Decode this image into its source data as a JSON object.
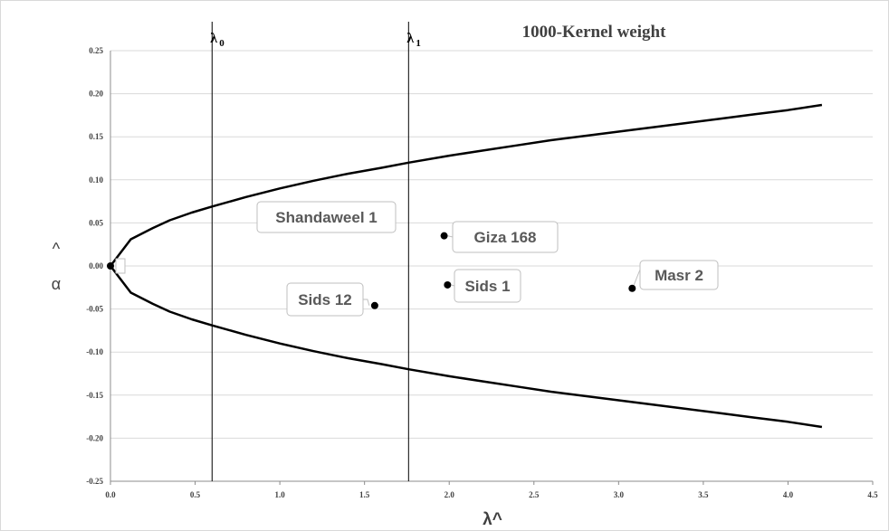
{
  "chart_data": {
    "type": "line",
    "title": "1000-Kernel weight",
    "xlabel": "λ^",
    "ylabel_hat": "^",
    "ylabel": "α",
    "xlim": [
      0.0,
      4.5
    ],
    "ylim": [
      -0.25,
      0.25
    ],
    "x_ticks": [
      "0.0",
      "0.5",
      "1.0",
      "1.5",
      "2.0",
      "2.5",
      "3.0",
      "3.5",
      "4.0",
      "4.5"
    ],
    "y_ticks": [
      "0.25",
      "0.20",
      "0.15",
      "0.10",
      "0.05",
      "0.00",
      "-0.05",
      "-0.10",
      "-0.15",
      "-0.20",
      "-0.25"
    ],
    "grid": "horizontal",
    "series": [
      {
        "x": [
          0.0,
          0.12,
          0.25,
          0.35,
          0.48,
          0.6,
          0.8,
          1.0,
          1.2,
          1.4,
          1.6,
          1.76,
          2.0,
          2.2,
          2.4,
          2.6,
          2.8,
          3.0,
          3.2,
          3.4,
          3.6,
          3.8,
          4.0,
          4.2
        ],
        "y": [
          0.0,
          0.031,
          0.044,
          0.053,
          0.062,
          0.069,
          0.08,
          0.09,
          0.099,
          0.107,
          0.114,
          0.12,
          0.128,
          0.134,
          0.14,
          0.146,
          0.151,
          0.156,
          0.161,
          0.166,
          0.171,
          0.176,
          0.181,
          0.187
        ]
      },
      {
        "x": [
          0.0,
          0.12,
          0.25,
          0.35,
          0.48,
          0.6,
          0.8,
          1.0,
          1.2,
          1.4,
          1.6,
          1.76,
          2.0,
          2.2,
          2.4,
          2.6,
          2.8,
          3.0,
          3.2,
          3.4,
          3.6,
          3.8,
          4.0,
          4.2
        ],
        "y": [
          0.0,
          -0.031,
          -0.044,
          -0.053,
          -0.062,
          -0.069,
          -0.08,
          -0.09,
          -0.099,
          -0.107,
          -0.114,
          -0.12,
          -0.128,
          -0.134,
          -0.14,
          -0.146,
          -0.151,
          -0.156,
          -0.161,
          -0.166,
          -0.171,
          -0.176,
          -0.181,
          -0.187
        ]
      }
    ],
    "vertical_lines": [
      {
        "x": 0.6,
        "label": "λ",
        "sub": "0"
      },
      {
        "x": 1.76,
        "label": "λ",
        "sub": "1"
      }
    ],
    "points": [
      {
        "name": "Shandaweel 1",
        "x": 0.0,
        "y": 0.0
      },
      {
        "name": "Giza 168",
        "x": 1.97,
        "y": 0.035
      },
      {
        "name": "Sids 1",
        "x": 1.99,
        "y": -0.022
      },
      {
        "name": "Masr 2",
        "x": 3.08,
        "y": -0.026
      },
      {
        "name": "Sids 12",
        "x": 1.56,
        "y": -0.046
      }
    ]
  }
}
